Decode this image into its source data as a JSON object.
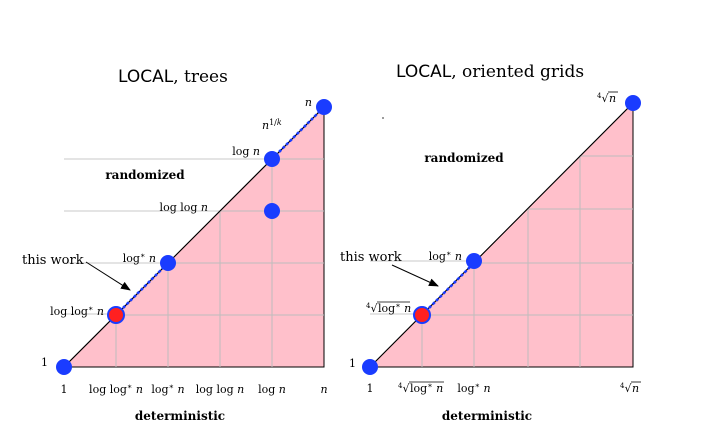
{
  "panels": [
    {
      "id": "trees",
      "title_bold": "LOCAL",
      "title_rest": ", trees",
      "region_label_upper": "randomized",
      "region_label_lower": "deterministic",
      "axis_corner_label": "1",
      "x_ticks": [
        "1",
        "log log* n",
        "log* n",
        "log log n",
        "log n",
        "n"
      ],
      "y_ticks": [
        "1",
        "log log* n",
        "log* n",
        "log log n",
        "log n",
        "n"
      ],
      "segment_label": "n1/k",
      "annotation": "this work",
      "highlight_color": "#ffc0cb",
      "point_color": "#1a3cff",
      "highlight_point_color": "#ff2020"
    },
    {
      "id": "grids",
      "title_bold": "LOCAL",
      "title_rest": ", oriented grids",
      "region_label_upper": "randomized",
      "region_label_lower": "deterministic",
      "axis_corner_label": "1",
      "x_ticks": [
        "1",
        "⁴√log* n",
        "log* n",
        "⁴√n"
      ],
      "y_ticks": [
        "1",
        "⁴√log* n",
        "log* n",
        "⁴√n"
      ],
      "annotation": "this work",
      "highlight_color": "#ffc0cb",
      "point_color": "#1a3cff",
      "highlight_point_color": "#ff2020"
    }
  ]
}
